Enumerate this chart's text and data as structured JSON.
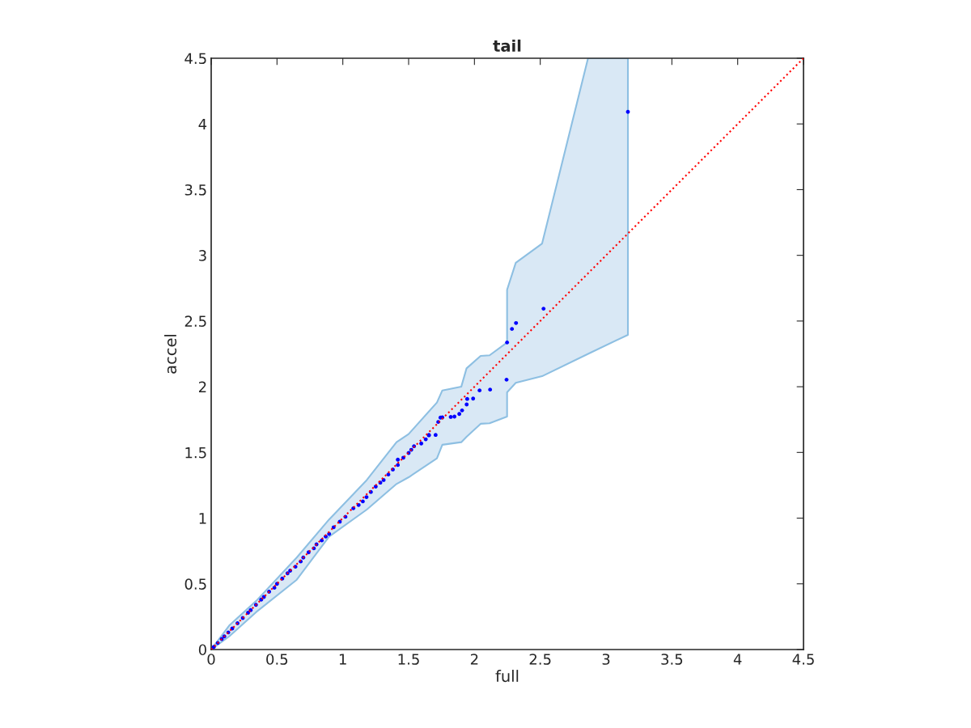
{
  "chart_data": {
    "type": "scatter",
    "title": "tail",
    "xlabel": "full",
    "ylabel": "accel",
    "xlim": [
      0,
      4.5
    ],
    "ylim": [
      0,
      4.5
    ],
    "xticks": [
      0,
      0.5,
      1,
      1.5,
      2,
      2.5,
      3,
      3.5,
      4,
      4.5
    ],
    "yticks": [
      0,
      0.5,
      1,
      1.5,
      2,
      2.5,
      3,
      3.5,
      4,
      4.5
    ],
    "grid": false,
    "legend": false,
    "series": [
      {
        "type": "line",
        "color": "#ff0000",
        "line_style": "dotted",
        "marker": "none",
        "x": [
          0,
          0.137,
          0.342,
          0.65,
          0.896,
          1.182,
          1.408,
          1.5,
          1.715,
          1.756,
          1.9,
          1.94,
          2.047,
          2.115,
          2.248,
          2.248,
          2.314,
          2.514,
          2.863,
          3.166,
          4.5
        ],
        "values": [
          0,
          0.137,
          0.342,
          0.65,
          0.896,
          1.182,
          1.408,
          1.5,
          1.715,
          1.756,
          1.9,
          1.94,
          2.047,
          2.115,
          2.248,
          2.248,
          2.314,
          2.514,
          2.863,
          3.166,
          4.5
        ],
        "lower": [
          0,
          0.1,
          0.285,
          0.531,
          0.86,
          1.065,
          1.26,
          1.311,
          1.455,
          1.558,
          1.578,
          1.619,
          1.718,
          1.722,
          1.773,
          1.958,
          2.03,
          2.08,
          2.25,
          2.395,
          null
        ],
        "upper": [
          0,
          0.183,
          0.37,
          0.7,
          0.99,
          1.29,
          1.578,
          1.64,
          1.88,
          1.972,
          2.0,
          2.14,
          2.235,
          2.239,
          2.337,
          2.738,
          2.943,
          3.09,
          4.5,
          4.5,
          null
        ]
      },
      {
        "color": "#0000ff",
        "marker": "circle",
        "x": [
          0,
          0.02,
          0.05,
          0.08,
          0.1,
          0.13,
          0.16,
          0.2,
          0.24,
          0.28,
          0.3,
          0.34,
          0.38,
          0.4,
          0.44,
          0.48,
          0.5,
          0.54,
          0.58,
          0.6,
          0.64,
          0.68,
          0.7,
          0.74,
          0.78,
          0.8,
          0.84,
          0.87,
          0.896,
          0.93,
          0.977,
          1.02,
          1.08,
          1.12,
          1.152,
          1.18,
          1.213,
          1.25,
          1.285,
          1.31,
          1.346,
          1.38,
          1.418,
          1.418,
          1.46,
          1.5,
          1.52,
          1.541,
          1.596,
          1.63,
          1.654,
          1.654,
          1.705,
          1.725,
          1.742,
          1.756,
          1.82,
          1.848,
          1.885,
          1.906,
          1.941,
          1.945,
          1.99,
          2.039,
          2.119,
          2.244,
          2.248,
          2.285,
          2.316,
          2.525,
          3.166
        ],
        "values": [
          0,
          0.02,
          0.05,
          0.08,
          0.1,
          0.13,
          0.16,
          0.2,
          0.24,
          0.28,
          0.3,
          0.34,
          0.38,
          0.4,
          0.44,
          0.47,
          0.5,
          0.54,
          0.58,
          0.6,
          0.63,
          0.67,
          0.7,
          0.74,
          0.77,
          0.8,
          0.83,
          0.86,
          0.88,
          0.93,
          0.973,
          1.01,
          1.075,
          1.1,
          1.127,
          1.16,
          1.199,
          1.24,
          1.27,
          1.29,
          1.332,
          1.37,
          1.404,
          1.445,
          1.46,
          1.496,
          1.52,
          1.547,
          1.568,
          1.6,
          1.63,
          1.633,
          1.633,
          1.732,
          1.765,
          1.767,
          1.77,
          1.773,
          1.793,
          1.82,
          1.865,
          1.907,
          1.91,
          1.972,
          1.978,
          2.054,
          2.337,
          2.44,
          2.485,
          2.594,
          4.092
        ]
      }
    ]
  }
}
